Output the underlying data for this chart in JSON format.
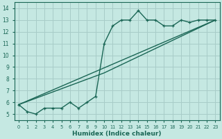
{
  "xlabel": "Humidex (Indice chaleur)",
  "ylabel": "",
  "xlim": [
    -0.5,
    23.5
  ],
  "ylim": [
    4.5,
    14.5
  ],
  "xticks": [
    0,
    1,
    2,
    3,
    4,
    5,
    6,
    7,
    8,
    9,
    10,
    11,
    12,
    13,
    14,
    15,
    16,
    17,
    18,
    19,
    20,
    21,
    22,
    23
  ],
  "yticks": [
    5,
    6,
    7,
    8,
    9,
    10,
    11,
    12,
    13,
    14
  ],
  "bg_color": "#c5e8e2",
  "grid_color": "#a8ccc8",
  "line_color": "#1a6655",
  "jagged_x": [
    0,
    1,
    2,
    3,
    4,
    5,
    6,
    7,
    8,
    9,
    10,
    11,
    12,
    13,
    14,
    15,
    16,
    17,
    18,
    19,
    20,
    21,
    22,
    23
  ],
  "jagged_y": [
    5.8,
    5.2,
    5.0,
    5.5,
    5.5,
    5.5,
    6.0,
    5.5,
    6.0,
    6.5,
    11.0,
    12.5,
    13.0,
    13.0,
    13.8,
    13.0,
    13.0,
    12.5,
    12.5,
    13.0,
    12.8,
    13.0,
    13.0,
    13.0
  ],
  "trend1_x": [
    0,
    23
  ],
  "trend1_y": [
    5.8,
    13.0
  ],
  "trend2_x": [
    0,
    10,
    23
  ],
  "trend2_y": [
    5.8,
    8.5,
    13.0
  ]
}
